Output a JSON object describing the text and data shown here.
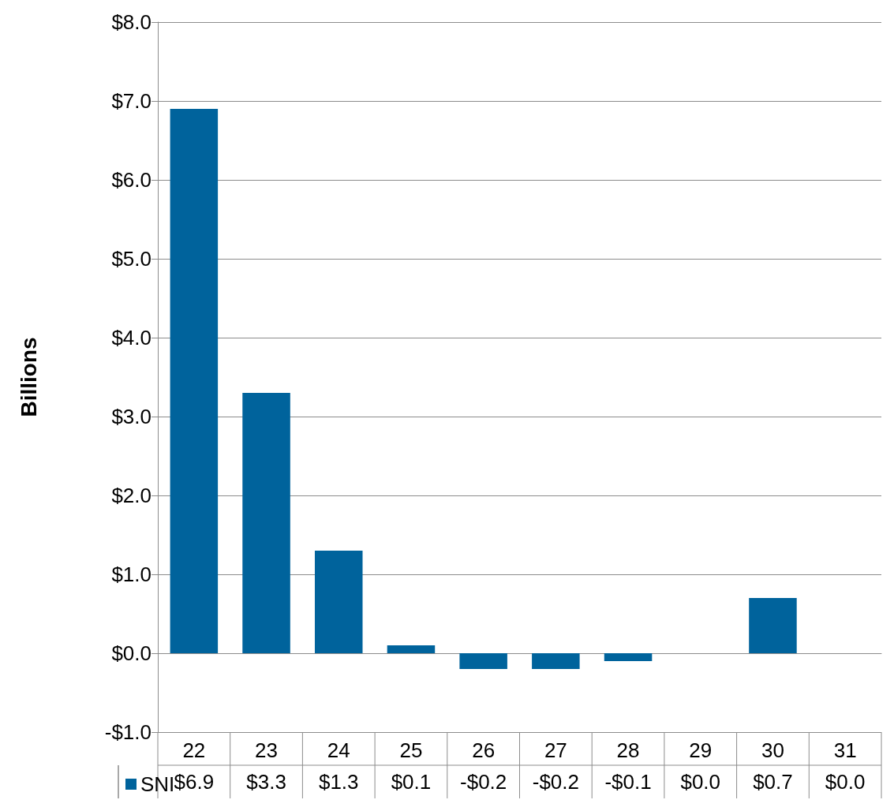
{
  "chart_data": {
    "type": "bar",
    "ylabel": "Billions",
    "categories": [
      "22",
      "23",
      "24",
      "25",
      "26",
      "27",
      "28",
      "29",
      "30",
      "31"
    ],
    "series": [
      {
        "name": "SNI",
        "color": "#00639c",
        "values": [
          6.9,
          3.3,
          1.3,
          0.1,
          -0.2,
          -0.2,
          -0.1,
          0.0,
          0.7,
          0.0
        ],
        "value_labels": [
          "$6.9",
          "$3.3",
          "$1.3",
          "$0.1",
          "-$0.2",
          "-$0.2",
          "-$0.1",
          "$0.0",
          "$0.7",
          "$0.0"
        ]
      }
    ],
    "ylim": [
      -1,
      8
    ],
    "yticks": [
      {
        "value": -1,
        "label": "-$1.0"
      },
      {
        "value": 0,
        "label": "$0.0"
      },
      {
        "value": 1,
        "label": "$1.0"
      },
      {
        "value": 2,
        "label": "$2.0"
      },
      {
        "value": 3,
        "label": "$3.0"
      },
      {
        "value": 4,
        "label": "$4.0"
      },
      {
        "value": 5,
        "label": "$5.0"
      },
      {
        "value": 6,
        "label": "$6.0"
      },
      {
        "value": 7,
        "label": "$7.0"
      },
      {
        "value": 8,
        "label": "$8.0"
      }
    ],
    "grid": "y",
    "legend": "bottom left"
  }
}
